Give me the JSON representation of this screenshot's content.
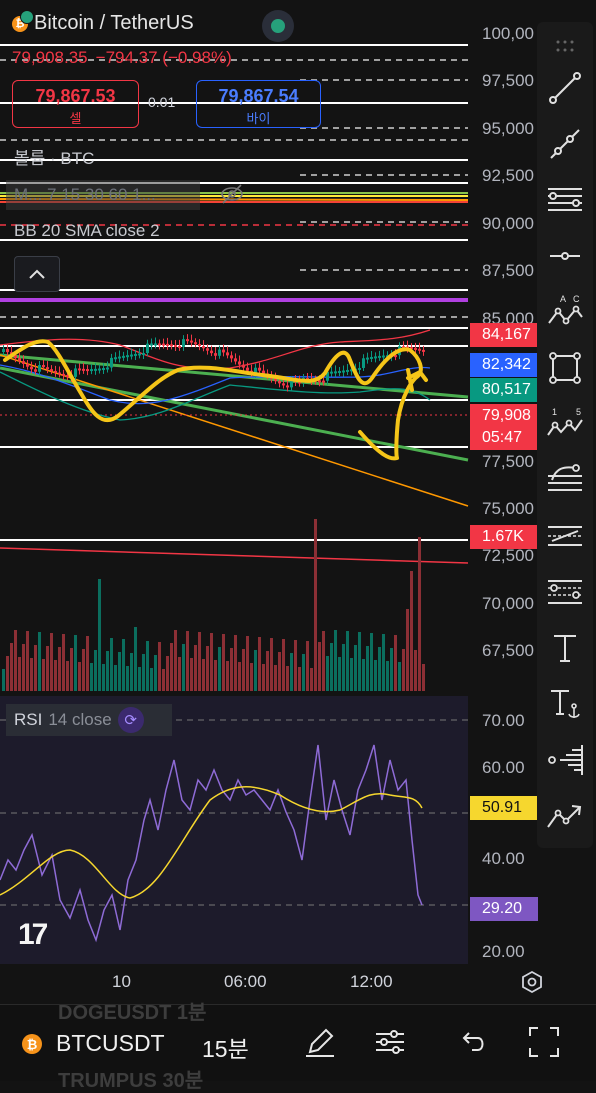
{
  "header": {
    "pair_title": "Bitcoin / TetherUS",
    "last_price": "79,908.35",
    "change": "−794.37 (−0.98%)",
    "sell_price": "79,867.53",
    "sell_label": "셀",
    "spread": "0.01",
    "buy_price": "79,867.54",
    "buy_label": "바이"
  },
  "legends": {
    "volume": "볼륨 · BTC",
    "ma_row": "M... 7 15 30 60 1...",
    "bb": "BB 20 SMA close 2",
    "rsi_name": "RSI",
    "rsi_params": "14 close"
  },
  "price_axis": {
    "labels": [
      "100,00",
      "97,500",
      "95,000",
      "92,500",
      "90,000",
      "87,500",
      "85,000",
      "77,500",
      "75,000",
      "72,500",
      "70,000",
      "67,500"
    ],
    "tags": [
      {
        "text": "84,167",
        "color": "#f23645"
      },
      {
        "text": "82,342",
        "color": "#2962ff"
      },
      {
        "text": "80,517",
        "color": "#089981"
      },
      {
        "text": "79,908",
        "color": "#f23645"
      },
      {
        "text": "05:47",
        "color": "#f23645"
      },
      {
        "text": "1.67K",
        "color": "#f23645"
      }
    ]
  },
  "rsi_axis": {
    "labels": [
      "70.00",
      "60.00",
      "40.00",
      "20.00"
    ],
    "ma_tag": "50.91",
    "rsi_tag": "29.20",
    "ma_color": "#f6d72e",
    "rsi_color": "#7e57c2"
  },
  "time_axis": [
    "10",
    "06:00",
    "12:00"
  ],
  "toolbar": {
    "tools": [
      "trend-line-icon",
      "ray-icon",
      "parallel-channel-icon",
      "horizontal-line-icon",
      "abc-pattern-icon",
      "rectangle-icon",
      "elliott-wave-icon",
      "fib-retracement-icon",
      "gann-box-icon",
      "fib-channel-icon",
      "text-icon",
      "anchored-text-icon",
      "volume-profile-icon",
      "forecast-icon"
    ]
  },
  "bottom_bar": {
    "symbol": "BTCUSDT",
    "interval": "15분",
    "ghost_above": "DOGEUSDT   1분",
    "ghost_below": "TRUMPUS   30분"
  },
  "colors": {
    "background": "#131313",
    "sell": "#f23645",
    "buy": "#2962ff",
    "up": "#089981",
    "down": "#f23645",
    "drawing": "#f5c518"
  }
}
